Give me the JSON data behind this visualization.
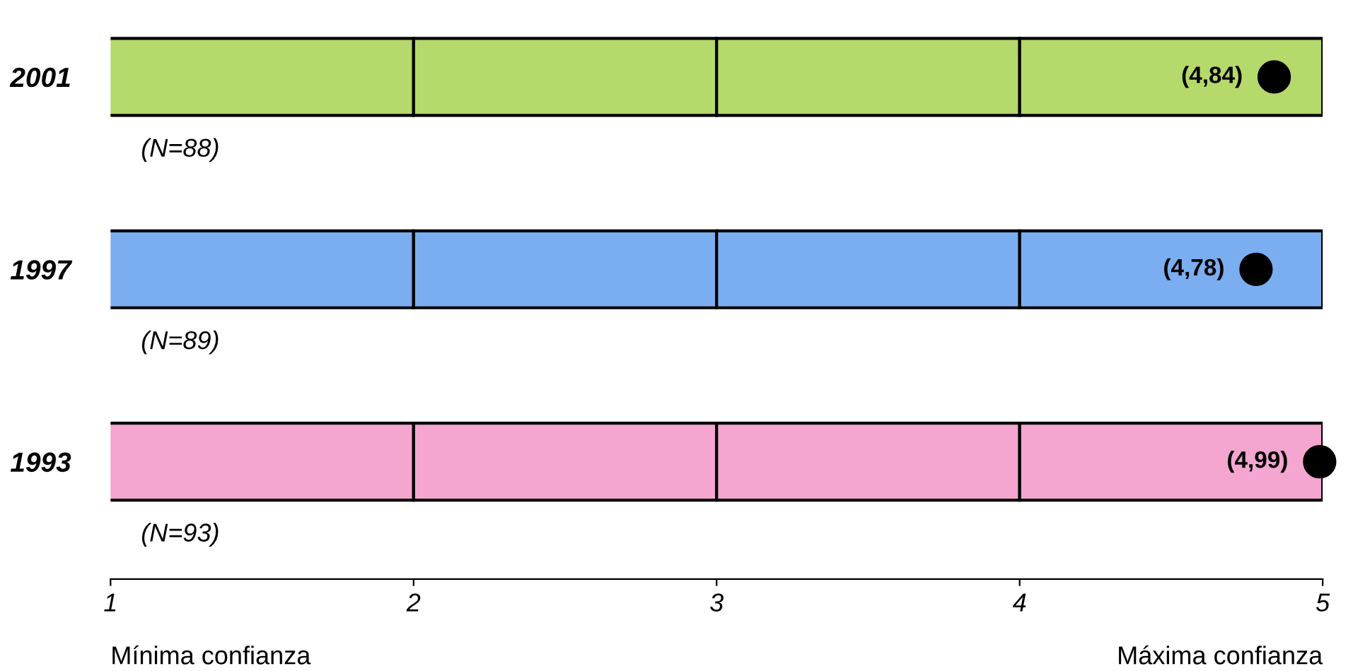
{
  "chart_data": {
    "type": "bar",
    "orientation": "horizontal",
    "stacked": true,
    "categories": [
      "2001",
      "1997",
      "1993"
    ],
    "series": [
      {
        "colors": [
          "#b5d96a",
          "#7aaef0",
          "#f4a6d0"
        ],
        "values": [
          2,
          2,
          2
        ]
      },
      {
        "colors": [
          "#b5d96a",
          "#7aaef0",
          "#f4a6d0"
        ],
        "values": [
          1,
          1,
          1
        ]
      },
      {
        "colors": [
          "#b5d96a",
          "#7aaef0",
          "#f4a6d0"
        ],
        "values": [
          1,
          1,
          1
        ]
      },
      {
        "colors": [
          "#b5d96a",
          "#7aaef0",
          "#f4a6d0"
        ],
        "values": [
          1,
          1,
          1
        ]
      },
      {
        "type": "scatter",
        "color": "#000000",
        "values": [
          4.84,
          4.78,
          4.99
        ],
        "value_labels": [
          "(4,84)",
          "(4,78)",
          "(4,99)"
        ]
      }
    ],
    "marker": "circle",
    "xlim": [
      1,
      5
    ],
    "xticks": [
      1,
      2,
      3,
      4,
      5
    ],
    "annotations": [
      "(N=88)",
      "(N=89)",
      "(N=93)",
      "Mínima confianza",
      "Máxima confianza"
    ],
    "grid": false,
    "legend": false
  }
}
